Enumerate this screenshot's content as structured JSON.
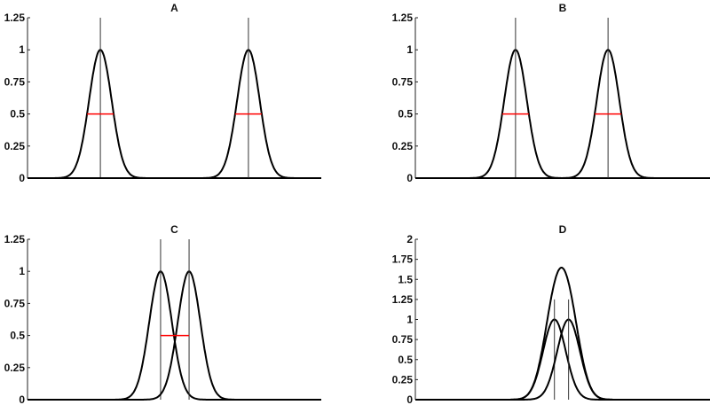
{
  "chart_data": [
    {
      "type": "line",
      "title": "A",
      "xlim": [
        0,
        100
      ],
      "ylim": [
        0,
        1.25
      ],
      "yticks": [
        "0",
        "0.25",
        "0.5",
        "0.75",
        "1",
        "1.25"
      ],
      "ytick_values": [
        0,
        0.25,
        0.5,
        0.75,
        1,
        1.25
      ],
      "peaks": [
        {
          "center": 24.8,
          "amplitude": 1,
          "sigma": 3.85
        },
        {
          "center": 75.2,
          "amplitude": 1,
          "sigma": 3.85
        }
      ],
      "show_sum": false,
      "fwhm_markers": true,
      "marker_color": "#ff0000"
    },
    {
      "type": "line",
      "title": "B",
      "xlim": [
        0,
        100
      ],
      "ylim": [
        0,
        1.25
      ],
      "yticks": [
        "0",
        "0.25",
        "0.5",
        "0.75",
        "1",
        "1.25"
      ],
      "ytick_values": [
        0,
        0.25,
        0.5,
        0.75,
        1,
        1.25
      ],
      "peaks": [
        {
          "center": 34,
          "amplitude": 1,
          "sigma": 3.85
        },
        {
          "center": 65.4,
          "amplitude": 1,
          "sigma": 3.85
        }
      ],
      "show_sum": false,
      "fwhm_markers": true,
      "marker_color": "#ff0000"
    },
    {
      "type": "line",
      "title": "C",
      "xlim": [
        0,
        100
      ],
      "ylim": [
        0,
        1.25
      ],
      "yticks": [
        "0",
        "0.25",
        "0.5",
        "0.75",
        "1",
        "1.25"
      ],
      "ytick_values": [
        0,
        0.25,
        0.5,
        0.75,
        1,
        1.25
      ],
      "peaks": [
        {
          "center": 45.3,
          "amplitude": 1,
          "sigma": 3.85
        },
        {
          "center": 55,
          "amplitude": 1,
          "sigma": 3.85
        }
      ],
      "show_sum": false,
      "fwhm_markers": "between",
      "marker_color": "#ff0000"
    },
    {
      "type": "line",
      "title": "D",
      "xlim": [
        0,
        100
      ],
      "ylim": [
        0,
        2
      ],
      "yticks": [
        "0",
        "0.25",
        "0.5",
        "0.75",
        "1",
        "1.25",
        "1.5",
        "1.75",
        "2"
      ],
      "ytick_values": [
        0,
        0.25,
        0.5,
        0.75,
        1,
        1.25,
        1.5,
        1.75,
        2
      ],
      "peaks": [
        {
          "center": 47.2,
          "amplitude": 1,
          "sigma": 3.85
        },
        {
          "center": 52,
          "amplitude": 1,
          "sigma": 3.85
        }
      ],
      "show_sum": true,
      "fwhm_markers": false,
      "marker_top": 1.25
    }
  ]
}
